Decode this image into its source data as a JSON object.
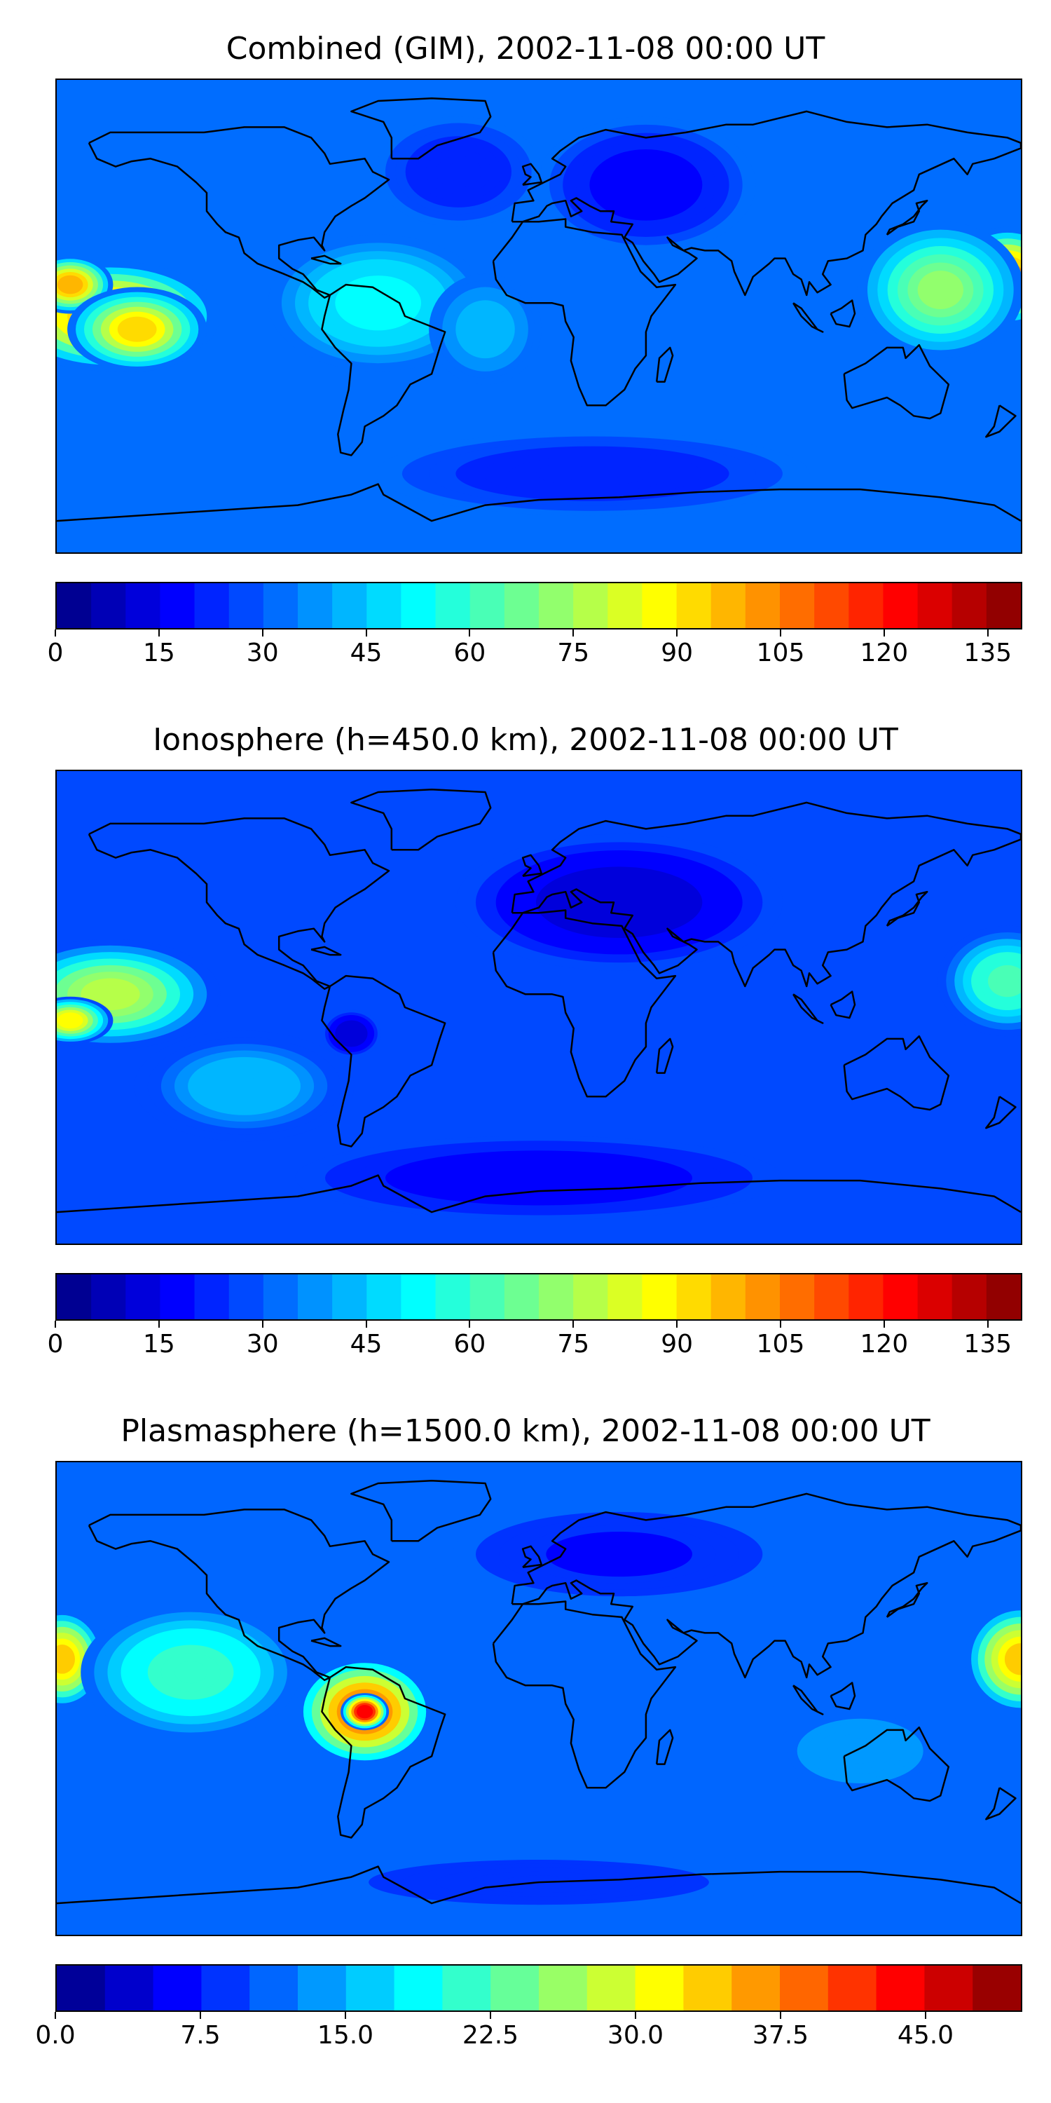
{
  "panels": [
    {
      "title": "Combined (GIM), 2002-11-08 00:00 UT",
      "colorbar": {
        "min": 0,
        "max": 140,
        "levels": 28,
        "ticks": [
          "0",
          "15",
          "30",
          "45",
          "60",
          "75",
          "90",
          "105",
          "120",
          "135"
        ]
      },
      "field": {
        "background_value": 30,
        "blobs": [
          {
            "lon": -160,
            "lat": 0,
            "rx": 40,
            "ry": 20,
            "value": 105
          },
          {
            "lon": -175,
            "lat": 12,
            "rx": 15,
            "ry": 10,
            "value": 100
          },
          {
            "lon": -150,
            "lat": -5,
            "rx": 25,
            "ry": 15,
            "value": 95
          },
          {
            "lon": 175,
            "lat": 15,
            "rx": 20,
            "ry": 18,
            "value": 105
          },
          {
            "lon": 150,
            "lat": 10,
            "rx": 30,
            "ry": 25,
            "value": 75
          },
          {
            "lon": -60,
            "lat": 5,
            "rx": 40,
            "ry": 25,
            "value": 55
          },
          {
            "lon": -20,
            "lat": -5,
            "rx": 20,
            "ry": 20,
            "value": 45
          },
          {
            "lon": 40,
            "lat": 50,
            "rx": 40,
            "ry": 25,
            "value": 15
          },
          {
            "lon": -30,
            "lat": 55,
            "rx": 30,
            "ry": 20,
            "value": 20
          },
          {
            "lon": 20,
            "lat": -60,
            "rx": 80,
            "ry": 15,
            "value": 20
          }
        ]
      }
    },
    {
      "title": "Ionosphere  (h=450.0 km), 2002-11-08 00:00 UT",
      "colorbar": {
        "min": 0,
        "max": 140,
        "levels": 28,
        "ticks": [
          "0",
          "15",
          "30",
          "45",
          "60",
          "75",
          "90",
          "105",
          "120",
          "135"
        ]
      },
      "field": {
        "background_value": 25,
        "blobs": [
          {
            "lon": -160,
            "lat": 5,
            "rx": 40,
            "ry": 20,
            "value": 80
          },
          {
            "lon": -175,
            "lat": -5,
            "rx": 15,
            "ry": 8,
            "value": 90
          },
          {
            "lon": 175,
            "lat": 10,
            "rx": 25,
            "ry": 20,
            "value": 65
          },
          {
            "lon": -70,
            "lat": -10,
            "rx": 10,
            "ry": 8,
            "value": 10
          },
          {
            "lon": 30,
            "lat": 40,
            "rx": 60,
            "ry": 25,
            "value": 10
          },
          {
            "lon": 0,
            "lat": -65,
            "rx": 90,
            "ry": 15,
            "value": 15
          },
          {
            "lon": -110,
            "lat": -30,
            "rx": 40,
            "ry": 20,
            "value": 45
          }
        ]
      }
    },
    {
      "title": "Plasmasphere (h=1500.0 km), 2002-11-08 00:00 UT",
      "colorbar": {
        "min": 0,
        "max": 50,
        "levels": 20,
        "ticks": [
          "0.0",
          "7.5",
          "15.0",
          "22.5",
          "30.0",
          "37.5",
          "45.0"
        ]
      },
      "field": {
        "background_value": 12,
        "blobs": [
          {
            "lon": -65,
            "lat": -5,
            "rx": 25,
            "ry": 20,
            "value": 40
          },
          {
            "lon": -65,
            "lat": -5,
            "rx": 8,
            "ry": 6,
            "value": 45
          },
          {
            "lon": 180,
            "lat": 15,
            "rx": 20,
            "ry": 20,
            "value": 35
          },
          {
            "lon": -178,
            "lat": 15,
            "rx": 15,
            "ry": 18,
            "value": 35
          },
          {
            "lon": -130,
            "lat": 10,
            "rx": 40,
            "ry": 25,
            "value": 22
          },
          {
            "lon": 30,
            "lat": 55,
            "rx": 70,
            "ry": 20,
            "value": 6
          },
          {
            "lon": 0,
            "lat": -70,
            "rx": 100,
            "ry": 12,
            "value": 8
          },
          {
            "lon": 120,
            "lat": -20,
            "rx": 30,
            "ry": 15,
            "value": 14
          }
        ]
      }
    }
  ]
}
